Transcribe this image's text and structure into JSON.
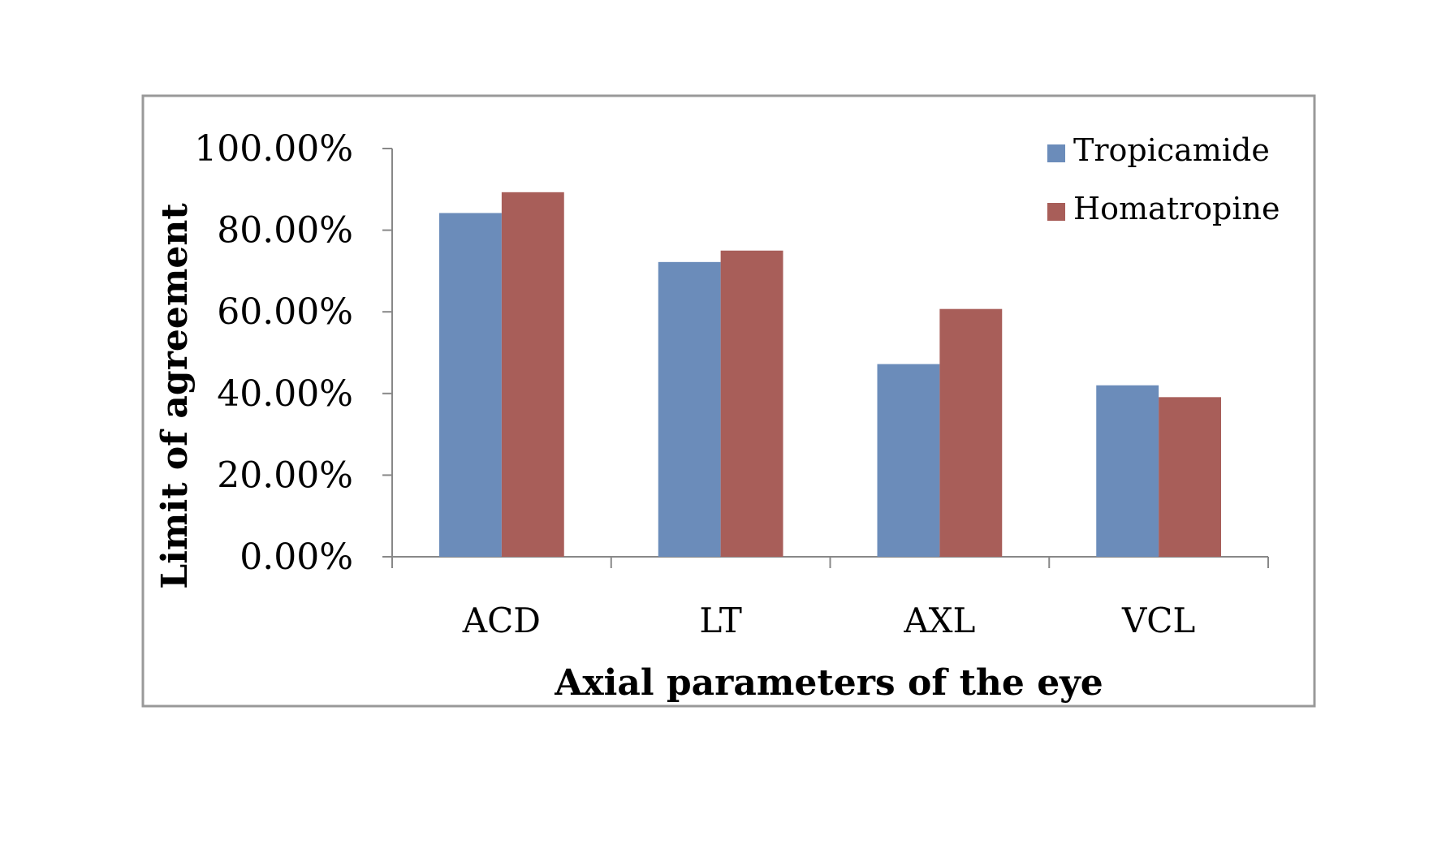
{
  "chart_data": {
    "type": "bar",
    "title": "",
    "xlabel": "Axial parameters of the eye",
    "ylabel": "Limit of agreement",
    "categories": [
      "ACD",
      "LT",
      "AXL",
      "VCL"
    ],
    "series": [
      {
        "name": "Tropicamide",
        "color": "#6b8cba",
        "values": [
          0.842,
          0.722,
          0.472,
          0.42
        ]
      },
      {
        "name": "Homatropine",
        "color": "#a85e59",
        "values": [
          0.893,
          0.75,
          0.607,
          0.391
        ]
      }
    ],
    "ylim": [
      0,
      1
    ],
    "yticks": [
      0,
      0.2,
      0.4,
      0.6,
      0.8,
      1.0
    ],
    "ytick_labels": [
      "0.00%",
      "20.00%",
      "40.00%",
      "60.00%",
      "80.00%",
      "100.00%"
    ],
    "grid": false,
    "legend_position": "top-right",
    "border_color": "#999999"
  }
}
